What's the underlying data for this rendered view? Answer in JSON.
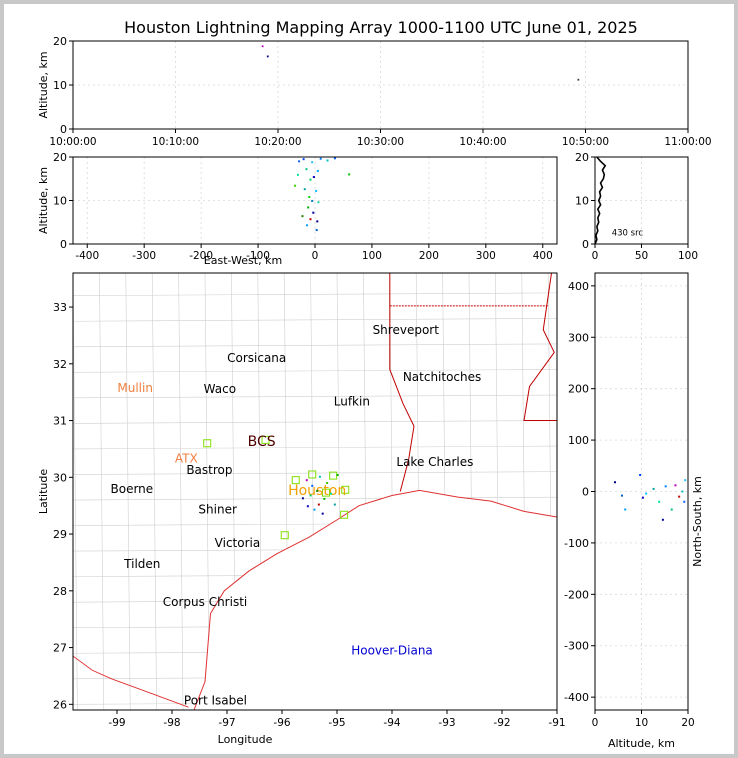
{
  "title": "Houston Lightning Mapping Array 1000-1100 UTC June 01, 2025",
  "chart_data": [
    {
      "type": "scatter",
      "panel": "altitude-time",
      "ylabel": "Altitude, km",
      "xlabel": "",
      "ylim": [
        0,
        20
      ],
      "yticks": [
        0,
        10,
        20
      ],
      "xticks": [
        "10:00:00",
        "10:10:00",
        "10:20:00",
        "10:30:00",
        "10:40:00",
        "10:50:00",
        "11:00:00"
      ],
      "xlim_minutes": [
        0,
        60
      ],
      "grid": true,
      "points": [
        {
          "t": 18.5,
          "alt": 18.8,
          "color": "#c000c0"
        },
        {
          "t": 19.0,
          "alt": 16.5,
          "color": "#000080"
        },
        {
          "t": 49.3,
          "alt": 11.2,
          "color": "#404040"
        }
      ]
    },
    {
      "type": "scatter",
      "panel": "altitude-east-west",
      "ylabel": "Altitude, km",
      "xlabel": "East-West, km",
      "xlim": [
        -425,
        425
      ],
      "ylim": [
        0,
        20
      ],
      "xticks": [
        -400,
        -300,
        -200,
        -100,
        0,
        100,
        200,
        300,
        400
      ],
      "yticks": [
        0,
        10,
        20
      ],
      "grid": true,
      "points": [
        {
          "x": -28,
          "y": 19.0,
          "c": "#1060ff"
        },
        {
          "x": -20,
          "y": 19.5,
          "c": "#0040ff"
        },
        {
          "x": -5,
          "y": 18.8,
          "c": "#20c0ff"
        },
        {
          "x": 10,
          "y": 19.6,
          "c": "#0080ff"
        },
        {
          "x": 22,
          "y": 19.2,
          "c": "#00c0c0"
        },
        {
          "x": 35,
          "y": 19.7,
          "c": "#0060ff"
        },
        {
          "x": -15,
          "y": 17.2,
          "c": "#00c080"
        },
        {
          "x": 5,
          "y": 16.8,
          "c": "#00a0ff"
        },
        {
          "x": -30,
          "y": 15.9,
          "c": "#00e0a0"
        },
        {
          "x": -2,
          "y": 15.4,
          "c": "#0000c0"
        },
        {
          "x": 60,
          "y": 16.0,
          "c": "#00c000"
        },
        {
          "x": -8,
          "y": 14.8,
          "c": "#00d060"
        },
        {
          "x": -35,
          "y": 13.4,
          "c": "#40d000"
        },
        {
          "x": -18,
          "y": 12.6,
          "c": "#00a0a0"
        },
        {
          "x": 2,
          "y": 12.2,
          "c": "#00c0ff"
        },
        {
          "x": -10,
          "y": 10.8,
          "c": "#00e000"
        },
        {
          "x": -5,
          "y": 9.9,
          "c": "#0080c0"
        },
        {
          "x": 6,
          "y": 9.6,
          "c": "#20d0a0"
        },
        {
          "x": -12,
          "y": 8.4,
          "c": "#00b000"
        },
        {
          "x": -3,
          "y": 7.2,
          "c": "#0000a0"
        },
        {
          "x": -22,
          "y": 6.4,
          "c": "#208000"
        },
        {
          "x": -8,
          "y": 5.7,
          "c": "#c00000"
        },
        {
          "x": 4,
          "y": 5.2,
          "c": "#000080"
        },
        {
          "x": -14,
          "y": 4.3,
          "c": "#00a0ff"
        },
        {
          "x": 3,
          "y": 3.2,
          "c": "#0060c0"
        }
      ]
    },
    {
      "type": "line",
      "panel": "altitude-histogram",
      "xlim": [
        0,
        100
      ],
      "ylim": [
        0,
        20
      ],
      "xticks": [
        0,
        50,
        100
      ],
      "yticks": [
        0,
        10,
        20
      ],
      "annotation": "430 src",
      "grid": true,
      "profile": [
        {
          "alt": 0,
          "count": 0
        },
        {
          "alt": 1,
          "count": 2
        },
        {
          "alt": 2,
          "count": 1
        },
        {
          "alt": 3,
          "count": 3
        },
        {
          "alt": 4,
          "count": 2
        },
        {
          "alt": 5,
          "count": 4
        },
        {
          "alt": 6,
          "count": 3
        },
        {
          "alt": 7,
          "count": 5
        },
        {
          "alt": 8,
          "count": 3
        },
        {
          "alt": 9,
          "count": 6
        },
        {
          "alt": 10,
          "count": 4
        },
        {
          "alt": 11,
          "count": 6
        },
        {
          "alt": 12,
          "count": 5
        },
        {
          "alt": 13,
          "count": 8
        },
        {
          "alt": 14,
          "count": 6
        },
        {
          "alt": 15,
          "count": 9
        },
        {
          "alt": 16,
          "count": 10
        },
        {
          "alt": 17,
          "count": 8
        },
        {
          "alt": 18,
          "count": 11
        },
        {
          "alt": 19,
          "count": 6
        },
        {
          "alt": 20,
          "count": 2
        }
      ]
    },
    {
      "type": "scatter",
      "panel": "plan-view-map",
      "xlabel": "Longitude",
      "ylabel": "Latitude",
      "xlim": [
        -99.8,
        -91.0
      ],
      "ylim": [
        25.9,
        33.6
      ],
      "xticks": [
        -99,
        -98,
        -97,
        -96,
        -95,
        -94,
        -93,
        -92,
        -91
      ],
      "yticks": [
        26,
        27,
        28,
        29,
        30,
        31,
        32,
        33
      ],
      "cities": [
        {
          "name": "Shreveport",
          "lon": -93.75,
          "lat": 32.6,
          "color": "#000000"
        },
        {
          "name": "Corsicana",
          "lon": -96.46,
          "lat": 32.1,
          "color": "#000000"
        },
        {
          "name": "Natchitoches",
          "lon": -93.09,
          "lat": 31.77,
          "color": "#000000"
        },
        {
          "name": "Mullin",
          "lon": -98.67,
          "lat": 31.57,
          "color": "#f08040"
        },
        {
          "name": "Waco",
          "lon": -97.13,
          "lat": 31.56,
          "color": "#000000"
        },
        {
          "name": "Lufkin",
          "lon": -94.73,
          "lat": 31.34,
          "color": "#000000"
        },
        {
          "name": "BCS",
          "lon": -96.37,
          "lat": 30.62,
          "color": "#500000"
        },
        {
          "name": "ATX",
          "lon": -97.74,
          "lat": 30.33,
          "color": "#f08040"
        },
        {
          "name": "Lake Charles",
          "lon": -93.22,
          "lat": 30.27,
          "color": "#000000"
        },
        {
          "name": "Bastrop",
          "lon": -97.32,
          "lat": 30.13,
          "color": "#000000"
        },
        {
          "name": "Boerne",
          "lon": -98.73,
          "lat": 29.79,
          "color": "#000000"
        },
        {
          "name": "Houston",
          "lon": -95.36,
          "lat": 29.76,
          "color": "#f0a000"
        },
        {
          "name": "Shiner",
          "lon": -97.17,
          "lat": 29.43,
          "color": "#000000"
        },
        {
          "name": "Victoria",
          "lon": -96.81,
          "lat": 28.84,
          "color": "#000000"
        },
        {
          "name": "Tilden",
          "lon": -98.54,
          "lat": 28.47,
          "color": "#000000"
        },
        {
          "name": "Corpus Christi",
          "lon": -97.4,
          "lat": 27.8,
          "color": "#000000"
        },
        {
          "name": "Hoover-Diana",
          "lon": -94.0,
          "lat": 26.95,
          "color": "#0000d0"
        },
        {
          "name": "Port Isabel",
          "lon": -97.21,
          "lat": 26.07,
          "color": "#000000"
        }
      ],
      "stations": [
        {
          "lon": -97.36,
          "lat": 30.6
        },
        {
          "lon": -96.3,
          "lat": 30.66
        },
        {
          "lon": -95.75,
          "lat": 29.95
        },
        {
          "lon": -95.45,
          "lat": 30.05
        },
        {
          "lon": -95.07,
          "lat": 30.03
        },
        {
          "lon": -94.85,
          "lat": 29.78
        },
        {
          "lon": -94.87,
          "lat": 29.34
        },
        {
          "lon": -95.95,
          "lat": 28.98
        },
        {
          "lon": -95.2,
          "lat": 29.73
        }
      ],
      "points": [
        {
          "lon": -95.53,
          "lat": 29.49,
          "c": "#0000c0"
        },
        {
          "lon": -95.41,
          "lat": 29.43,
          "c": "#00a0ff"
        },
        {
          "lon": -95.33,
          "lat": 29.52,
          "c": "#c00000"
        },
        {
          "lon": -95.23,
          "lat": 29.62,
          "c": "#00c000"
        },
        {
          "lon": -95.11,
          "lat": 29.71,
          "c": "#00e0a0"
        },
        {
          "lon": -95.45,
          "lat": 29.85,
          "c": "#0060ff"
        },
        {
          "lon": -95.18,
          "lat": 29.9,
          "c": "#40c000"
        },
        {
          "lon": -95.31,
          "lat": 30.01,
          "c": "#00c0c0"
        },
        {
          "lon": -94.99,
          "lat": 30.04,
          "c": "#00b000"
        },
        {
          "lon": -95.62,
          "lat": 29.63,
          "c": "#000080"
        },
        {
          "lon": -95.36,
          "lat": 29.76,
          "c": "#208000"
        },
        {
          "lon": -95.04,
          "lat": 29.52,
          "c": "#00a0a0"
        },
        {
          "lon": -95.55,
          "lat": 29.95,
          "c": "#c000c0"
        },
        {
          "lon": -95.26,
          "lat": 29.36,
          "c": "#0000a0"
        },
        {
          "lon": -95.48,
          "lat": 29.68,
          "c": "#00d060"
        }
      ]
    },
    {
      "type": "scatter",
      "panel": "north-south-altitude",
      "xlabel": "Altitude, km",
      "ylabel": "North-South, km",
      "xlim": [
        0,
        20
      ],
      "ylim": [
        -425,
        425
      ],
      "xticks": [
        0,
        10,
        20
      ],
      "yticks": [
        -400,
        -300,
        -200,
        -100,
        0,
        100,
        200,
        300,
        400
      ],
      "grid": true,
      "points": [
        {
          "x": 4.3,
          "y": 18,
          "c": "#000080"
        },
        {
          "x": 5.8,
          "y": -8,
          "c": "#0060c0"
        },
        {
          "x": 6.5,
          "y": -35,
          "c": "#00a0ff"
        },
        {
          "x": 9.7,
          "y": 32,
          "c": "#0040ff"
        },
        {
          "x": 10.3,
          "y": -12,
          "c": "#0000c0"
        },
        {
          "x": 11.0,
          "y": -4,
          "c": "#00c0ff"
        },
        {
          "x": 12.6,
          "y": 5,
          "c": "#00a0a0"
        },
        {
          "x": 13.8,
          "y": -20,
          "c": "#00e0a0"
        },
        {
          "x": 14.6,
          "y": -55,
          "c": "#0000a0"
        },
        {
          "x": 15.2,
          "y": 10,
          "c": "#0080ff"
        },
        {
          "x": 16.5,
          "y": -35,
          "c": "#00c080"
        },
        {
          "x": 17.3,
          "y": 12,
          "c": "#c000c0"
        },
        {
          "x": 18.1,
          "y": -10,
          "c": "#c00000"
        },
        {
          "x": 18.8,
          "y": 0,
          "c": "#00c0c0"
        },
        {
          "x": 19.2,
          "y": -20,
          "c": "#1060ff"
        },
        {
          "x": 19.4,
          "y": 22,
          "c": "#20c0ff"
        }
      ]
    }
  ]
}
